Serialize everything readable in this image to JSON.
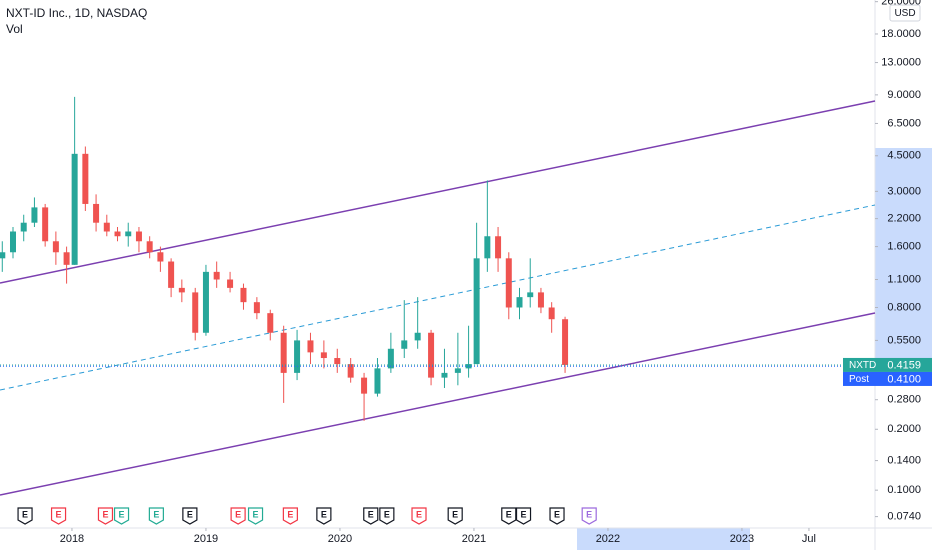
{
  "chart_data": {
    "type": "candlestick",
    "title": "NXT-ID Inc., 1D, NASDAQ",
    "subtitle": "Vol",
    "currency": "USD",
    "log_scale": true,
    "xlim": [
      2017.463,
      2023.993
    ],
    "ylim": [
      0.065,
      26.5
    ],
    "xticks": [
      2018,
      2019,
      2020,
      2021,
      2022,
      2023,
      {
        "value": 2023.5,
        "label": "Jul"
      }
    ],
    "yticks": [
      {
        "value": 26,
        "label": "26.0000"
      },
      {
        "value": 18,
        "label": "18.0000"
      },
      {
        "value": 13,
        "label": "13.0000"
      },
      {
        "value": 9,
        "label": "9.0000"
      },
      {
        "value": 6.5,
        "label": "6.5000"
      },
      {
        "value": 4.5,
        "label": "4.5000"
      },
      {
        "value": 3,
        "label": "3.0000"
      },
      {
        "value": 2.2,
        "label": "2.2000"
      },
      {
        "value": 1.6,
        "label": "1.6000"
      },
      {
        "value": 1.1,
        "label": "1.1000"
      },
      {
        "value": 0.8,
        "label": "0.8000"
      },
      {
        "value": 0.55,
        "label": "0.5500"
      },
      {
        "value": 0.28,
        "label": "0.2800"
      },
      {
        "value": 0.2,
        "label": "0.2000"
      },
      {
        "value": 0.14,
        "label": "0.1400"
      },
      {
        "value": 0.1,
        "label": "0.1000"
      },
      {
        "value": 0.074,
        "label": "0.0740"
      }
    ],
    "up_color": "#26a69a",
    "down_color": "#ef5350",
    "x": [
      2017.48,
      2017.56,
      2017.64,
      2017.72,
      2017.8,
      2017.88,
      2017.96,
      2018.02,
      2018.1,
      2018.18,
      2018.26,
      2018.34,
      2018.42,
      2018.5,
      2018.58,
      2018.66,
      2018.74,
      2018.82,
      2018.92,
      2019.0,
      2019.08,
      2019.18,
      2019.28,
      2019.38,
      2019.48,
      2019.58,
      2019.68,
      2019.78,
      2019.88,
      2019.98,
      2020.08,
      2020.18,
      2020.28,
      2020.38,
      2020.48,
      2020.58,
      2020.68,
      2020.78,
      2020.88,
      2020.96,
      2021.02,
      2021.1,
      2021.18,
      2021.26,
      2021.34,
      2021.42,
      2021.5,
      2021.58,
      2021.68
    ],
    "series": [
      {
        "name": "NXTD",
        "open": [
          1.4,
          1.5,
          1.9,
          2.1,
          2.5,
          1.7,
          1.5,
          1.3,
          4.6,
          2.6,
          2.1,
          1.9,
          1.8,
          1.9,
          1.7,
          1.5,
          1.35,
          1.0,
          0.95,
          0.6,
          1.2,
          1.1,
          1.0,
          0.85,
          0.75,
          0.6,
          0.38,
          0.55,
          0.48,
          0.45,
          0.42,
          0.36,
          0.3,
          0.4,
          0.5,
          0.55,
          0.6,
          0.36,
          0.38,
          0.4,
          0.42,
          1.4,
          1.8,
          1.4,
          0.8,
          0.9,
          0.95,
          0.8,
          0.7
        ],
        "high": [
          1.7,
          2.0,
          2.3,
          2.8,
          2.6,
          1.9,
          1.6,
          8.8,
          5.0,
          2.9,
          2.3,
          2.0,
          2.1,
          2.0,
          1.8,
          1.6,
          1.4,
          1.1,
          1.0,
          1.3,
          1.35,
          1.2,
          1.05,
          0.9,
          0.78,
          0.65,
          0.62,
          0.6,
          0.55,
          0.5,
          0.45,
          0.38,
          0.45,
          0.6,
          0.87,
          0.9,
          0.62,
          0.5,
          0.6,
          0.65,
          2.1,
          3.4,
          2.0,
          1.5,
          1.0,
          1.4,
          1.0,
          0.85,
          0.72
        ],
        "low": [
          1.2,
          1.4,
          1.7,
          2.0,
          1.6,
          1.3,
          1.05,
          1.3,
          2.4,
          1.9,
          1.8,
          1.7,
          1.6,
          1.5,
          1.4,
          1.2,
          0.9,
          0.85,
          0.55,
          0.58,
          1.0,
          0.95,
          0.78,
          0.7,
          0.55,
          0.27,
          0.35,
          0.42,
          0.4,
          0.38,
          0.34,
          0.22,
          0.29,
          0.38,
          0.45,
          0.5,
          0.33,
          0.32,
          0.33,
          0.36,
          0.42,
          1.2,
          1.2,
          0.7,
          0.7,
          0.8,
          0.75,
          0.6,
          0.38
        ],
        "close": [
          1.5,
          1.9,
          2.1,
          2.5,
          1.7,
          1.5,
          1.3,
          4.6,
          2.6,
          2.1,
          1.9,
          1.8,
          1.9,
          1.7,
          1.5,
          1.35,
          1.0,
          0.95,
          0.6,
          1.2,
          1.1,
          1.0,
          0.85,
          0.75,
          0.6,
          0.38,
          0.55,
          0.48,
          0.45,
          0.42,
          0.36,
          0.3,
          0.4,
          0.5,
          0.55,
          0.6,
          0.36,
          0.38,
          0.4,
          0.42,
          1.4,
          1.8,
          1.4,
          0.8,
          0.9,
          0.95,
          0.8,
          0.7,
          0.4159
        ]
      }
    ],
    "price_lines": [
      {
        "name": "NXTD",
        "value": 0.4159,
        "label": "0.4159",
        "color": "#26a69a"
      },
      {
        "name": "Post",
        "value": 0.41,
        "label": "0.4100",
        "color": "#2962ff"
      }
    ],
    "events": [
      {
        "x": 2017.65,
        "label": "E",
        "color": "#131722"
      },
      {
        "x": 2017.9,
        "label": "E",
        "color": "#f23645"
      },
      {
        "x": 2018.25,
        "label": "E",
        "color": "#f23645"
      },
      {
        "x": 2018.37,
        "label": "E",
        "color": "#22ab94"
      },
      {
        "x": 2018.63,
        "label": "E",
        "color": "#22ab94"
      },
      {
        "x": 2018.88,
        "label": "E",
        "color": "#131722"
      },
      {
        "x": 2019.24,
        "label": "E",
        "color": "#f23645"
      },
      {
        "x": 2019.37,
        "label": "E",
        "color": "#22ab94"
      },
      {
        "x": 2019.63,
        "label": "E",
        "color": "#f23645"
      },
      {
        "x": 2019.88,
        "label": "E",
        "color": "#131722"
      },
      {
        "x": 2020.23,
        "label": "E",
        "color": "#131722"
      },
      {
        "x": 2020.35,
        "label": "E",
        "color": "#131722"
      },
      {
        "x": 2020.59,
        "label": "E",
        "color": "#f23645"
      },
      {
        "x": 2020.86,
        "label": "E",
        "color": "#131722"
      },
      {
        "x": 2021.26,
        "label": "E",
        "color": "#131722"
      },
      {
        "x": 2021.37,
        "label": "E",
        "color": "#131722"
      },
      {
        "x": 2021.62,
        "label": "E",
        "color": "#131722"
      },
      {
        "x": 2021.86,
        "label": "E",
        "color": "#9c6ade"
      }
    ]
  }
}
